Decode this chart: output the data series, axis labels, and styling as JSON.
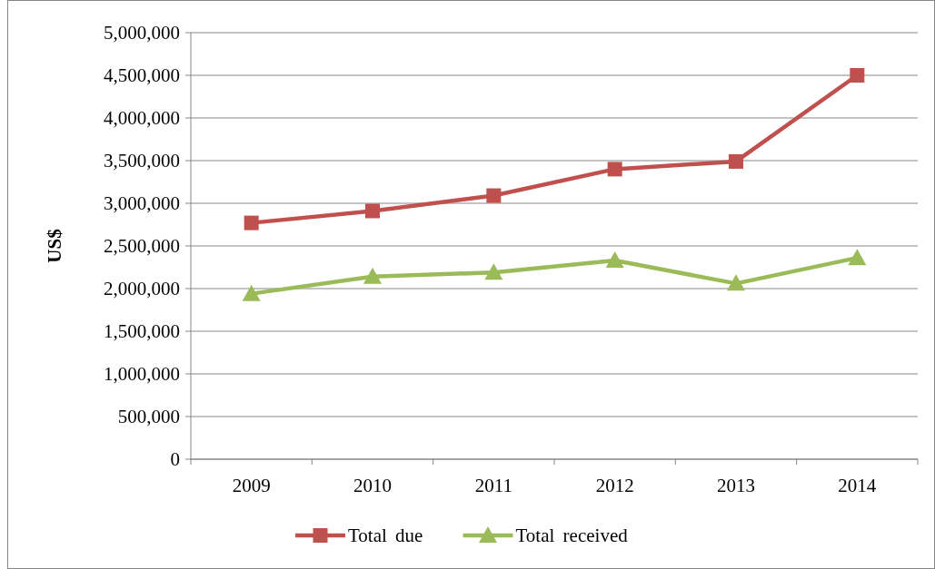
{
  "chart_data": {
    "type": "line",
    "ylabel": "US$",
    "categories": [
      "2009",
      "2010",
      "2011",
      "2012",
      "2013",
      "2014"
    ],
    "series": [
      {
        "name": "Total due",
        "color": "#c0504d",
        "marker": "square",
        "values": [
          2770000,
          2910000,
          3090000,
          3400000,
          3490000,
          4500000
        ]
      },
      {
        "name": "Total received",
        "color": "#9bbb59",
        "marker": "triangle",
        "values": [
          1940000,
          2140000,
          2190000,
          2330000,
          2060000,
          2360000
        ]
      }
    ],
    "ylim": [
      0,
      5000000
    ],
    "yticks": [
      {
        "value": 0,
        "label": "0"
      },
      {
        "value": 500000,
        "label": "500,000"
      },
      {
        "value": 1000000,
        "label": "1,000,000"
      },
      {
        "value": 1500000,
        "label": "1,500,000"
      },
      {
        "value": 2000000,
        "label": "2,000,000"
      },
      {
        "value": 2500000,
        "label": "2,500,000"
      },
      {
        "value": 3000000,
        "label": "3,000,000"
      },
      {
        "value": 3500000,
        "label": "3,500,000"
      },
      {
        "value": 4000000,
        "label": "4,000,000"
      },
      {
        "value": 4500000,
        "label": "4,500,000"
      },
      {
        "value": 5000000,
        "label": "5,000,000"
      }
    ],
    "grid": "y",
    "legend": "bottom"
  }
}
